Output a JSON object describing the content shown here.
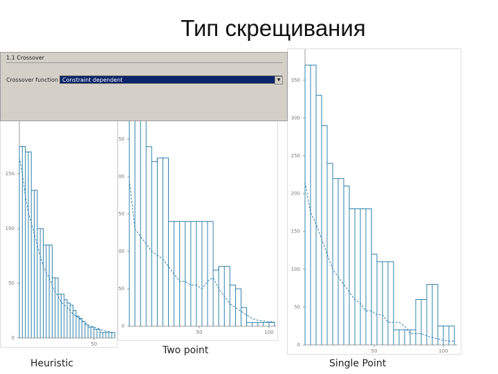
{
  "title": "Тип скрещивания",
  "panel": {
    "section": "1.1 Crossover",
    "label": "Crossover function",
    "select": "Constraint dependent"
  },
  "chart_data": [
    {
      "type": "line",
      "title": "Heuristic",
      "color": "#2e7fa8",
      "x": [
        0,
        2,
        4,
        6,
        8,
        10,
        12,
        14,
        16,
        18,
        20,
        22,
        24,
        26,
        28,
        30,
        32,
        34,
        36,
        38,
        40,
        42,
        44,
        46,
        48,
        50,
        52,
        54,
        56,
        58,
        60,
        62,
        64
      ],
      "series": [
        {
          "color": "#2e7fa8",
          "values": [
            175,
            175,
            170,
            170,
            135,
            135,
            100,
            100,
            85,
            85,
            85,
            55,
            55,
            40,
            40,
            35,
            32,
            30,
            25,
            20,
            18,
            15,
            12,
            10,
            10,
            8,
            8,
            5,
            5,
            5,
            5,
            5,
            5
          ]
        },
        {
          "color": "#2e7fa8",
          "dash": true,
          "values": [
            165,
            150,
            130,
            115,
            105,
            95,
            85,
            75,
            65,
            60,
            55,
            48,
            42,
            38,
            33,
            30,
            28,
            25,
            22,
            20,
            18,
            16,
            14,
            12,
            11,
            10,
            9,
            8,
            7,
            6,
            6,
            5,
            5
          ]
        }
      ],
      "xlim": [
        0,
        64
      ],
      "xticks": [
        50
      ],
      "ylim": [
        0,
        180
      ],
      "yticks": [
        0,
        50,
        100,
        150
      ]
    },
    {
      "type": "line",
      "title": "Two point",
      "color": "#2e7fa8",
      "x": [
        0,
        4,
        8,
        12,
        16,
        20,
        24,
        28,
        32,
        36,
        40,
        44,
        48,
        52,
        56,
        60,
        64,
        68,
        72,
        76,
        80,
        84,
        88,
        92,
        96,
        100,
        104
      ],
      "series": [
        {
          "color": "#2e7fa8",
          "values": [
            275,
            275,
            275,
            240,
            220,
            225,
            225,
            140,
            140,
            140,
            140,
            140,
            140,
            140,
            140,
            75,
            80,
            80,
            55,
            50,
            25,
            5,
            5,
            5,
            5,
            5,
            5
          ]
        },
        {
          "color": "#2e7fa8",
          "dash": true,
          "values": [
            195,
            130,
            120,
            110,
            100,
            95,
            90,
            80,
            70,
            60,
            60,
            55,
            55,
            50,
            60,
            65,
            50,
            40,
            30,
            25,
            20,
            15,
            10,
            8,
            7,
            6,
            6
          ]
        }
      ],
      "xlim": [
        0,
        105
      ],
      "xticks": [
        50,
        100
      ],
      "ylim": [
        0,
        275
      ],
      "yticks": [
        0,
        50,
        100,
        150,
        200,
        250
      ]
    },
    {
      "type": "line",
      "title": "Single Point",
      "color": "#2e7fa8",
      "x": [
        0,
        4,
        8,
        12,
        16,
        20,
        24,
        28,
        32,
        36,
        40,
        44,
        48,
        52,
        56,
        60,
        64,
        68,
        72,
        76,
        80,
        84,
        88,
        92,
        96,
        100,
        104,
        108
      ],
      "series": [
        {
          "color": "#2e7fa8",
          "values": [
            370,
            370,
            330,
            290,
            240,
            220,
            220,
            210,
            180,
            180,
            180,
            180,
            120,
            110,
            110,
            110,
            20,
            20,
            20,
            20,
            60,
            60,
            80,
            80,
            25,
            25,
            25,
            25
          ]
        },
        {
          "color": "#2e7fa8",
          "dash": true,
          "values": [
            215,
            175,
            160,
            140,
            120,
            100,
            90,
            80,
            70,
            60,
            55,
            45,
            45,
            40,
            40,
            30,
            30,
            30,
            25,
            15,
            15,
            15,
            12,
            10,
            8,
            6,
            5,
            5
          ]
        }
      ],
      "xlim": [
        0,
        110
      ],
      "xticks": [
        50,
        100
      ],
      "ylim": [
        0,
        385
      ],
      "yticks": [
        0,
        50,
        100,
        150,
        200,
        250,
        300,
        350
      ]
    }
  ]
}
